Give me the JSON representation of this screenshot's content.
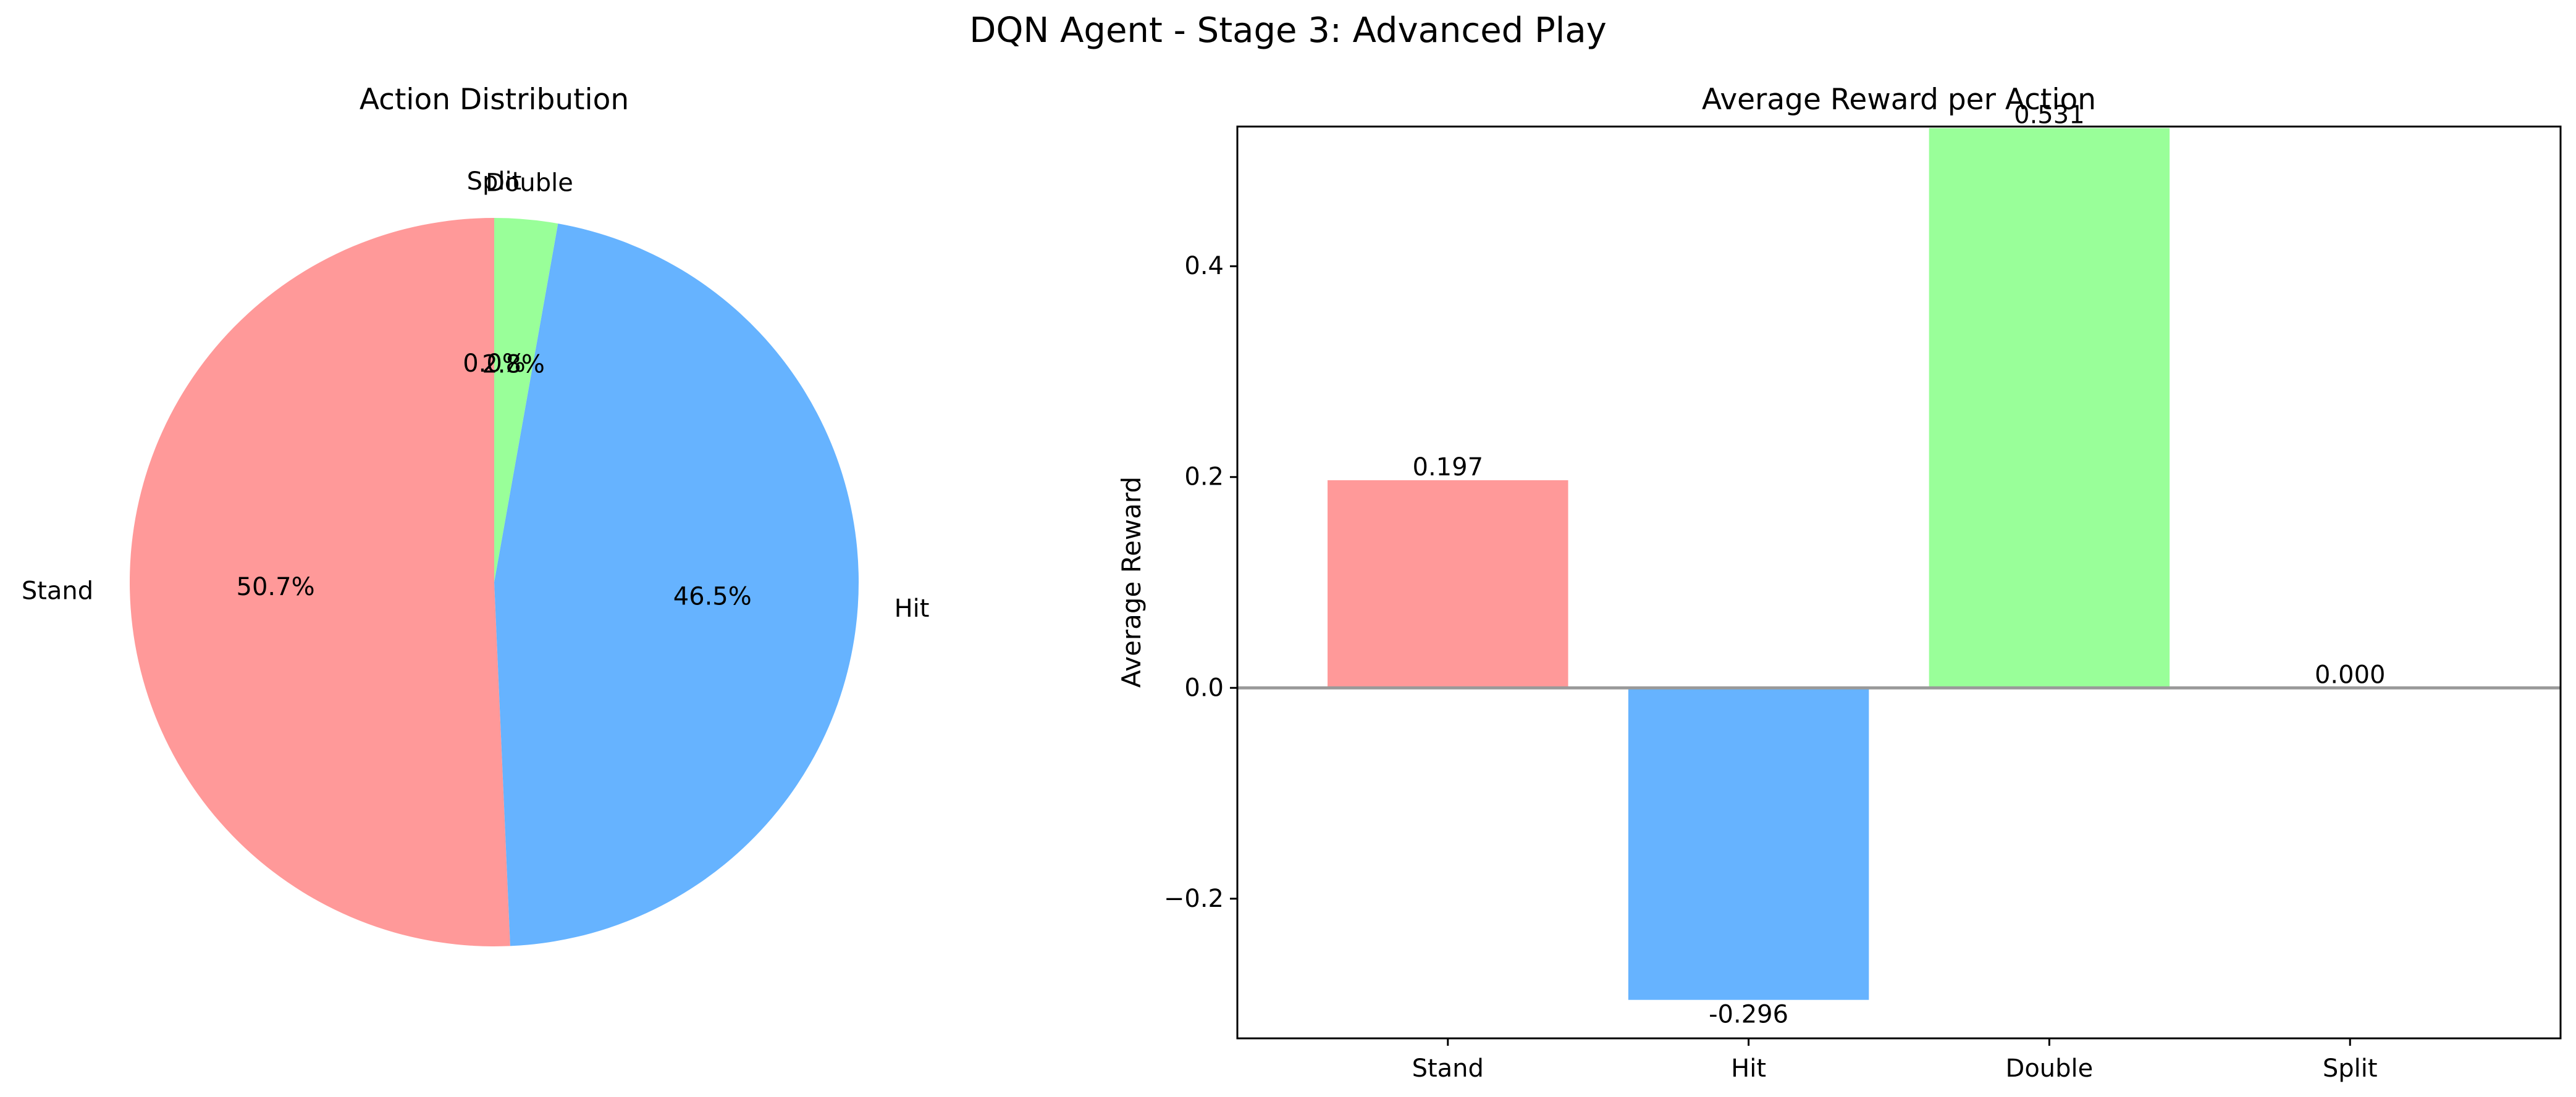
{
  "figure": {
    "title": "DQN Agent - Stage 3: Advanced Play"
  },
  "chart_data": [
    {
      "type": "pie",
      "title": "Action Distribution",
      "start_angle_deg": 90,
      "direction": "counterclockwise",
      "labels": [
        "Stand",
        "Hit",
        "Double",
        "Split"
      ],
      "values": [
        50.7,
        46.5,
        2.8,
        0.0
      ],
      "pct_labels": [
        "50.7%",
        "46.5%",
        "2.8%",
        "0.0%"
      ],
      "colors": [
        "#ff9999",
        "#66b3ff",
        "#99ff99",
        "#ffcc99"
      ]
    },
    {
      "type": "bar",
      "title": "Average Reward per Action",
      "xlabel": "",
      "ylabel": "Average Reward",
      "categories": [
        "Stand",
        "Hit",
        "Double",
        "Split"
      ],
      "values": [
        0.197,
        -0.296,
        0.531,
        0.0
      ],
      "value_labels": [
        "0.197",
        "-0.296",
        "0.531",
        "0.000"
      ],
      "colors": [
        "#ff9999",
        "#66b3ff",
        "#99ff99",
        "#ffcc99"
      ],
      "ylim": [
        -0.3325,
        0.5325
      ],
      "yticks": [
        -0.2,
        0.0,
        0.2,
        0.4
      ],
      "ytick_labels": [
        "−0.2",
        "0.0",
        "0.2",
        "0.4"
      ],
      "zero_line_color": "#999999",
      "grid": false
    }
  ]
}
